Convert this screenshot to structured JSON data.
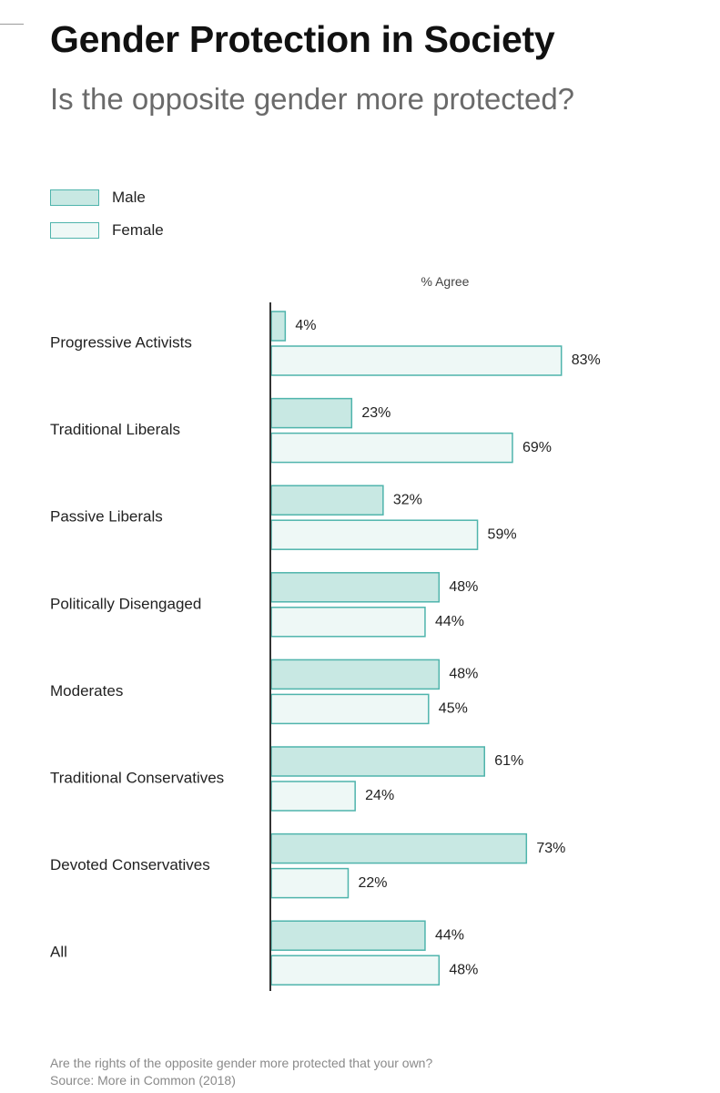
{
  "title": "Gender Protection in Society",
  "subtitle": "Is the opposite gender more protected?",
  "footnote": "Are the rights of the opposite gender more protected that your own?",
  "source": "Source: More in Common (2018)",
  "colors": {
    "male_fill": "#c8e8e3",
    "female_fill": "#eef8f6",
    "bar_stroke": "#4fb4ac",
    "axis": "#333333"
  },
  "chart_data": {
    "type": "bar",
    "orientation": "horizontal",
    "title": "Gender Protection in Society",
    "subtitle": "Is the opposite gender more protected?",
    "axis_label": "% Agree",
    "xlim": [
      0,
      100
    ],
    "grid": false,
    "legend_position": "top-left",
    "categories": [
      "Progressive Activists",
      "Traditional Liberals",
      "Passive Liberals",
      "Politically Disengaged",
      "Moderates",
      "Traditional Conservatives",
      "Devoted Conservatives",
      "All"
    ],
    "series": [
      {
        "name": "Male",
        "values": [
          4,
          23,
          32,
          48,
          48,
          61,
          73,
          44
        ],
        "labels": [
          "4%",
          "23%",
          "32%",
          "48%",
          "48%",
          "61%",
          "73%",
          "44%"
        ]
      },
      {
        "name": "Female",
        "values": [
          83,
          69,
          59,
          44,
          45,
          24,
          22,
          48
        ],
        "labels": [
          "83%",
          "69%",
          "59%",
          "44%",
          "45%",
          "24%",
          "22%",
          "48%"
        ]
      }
    ]
  }
}
